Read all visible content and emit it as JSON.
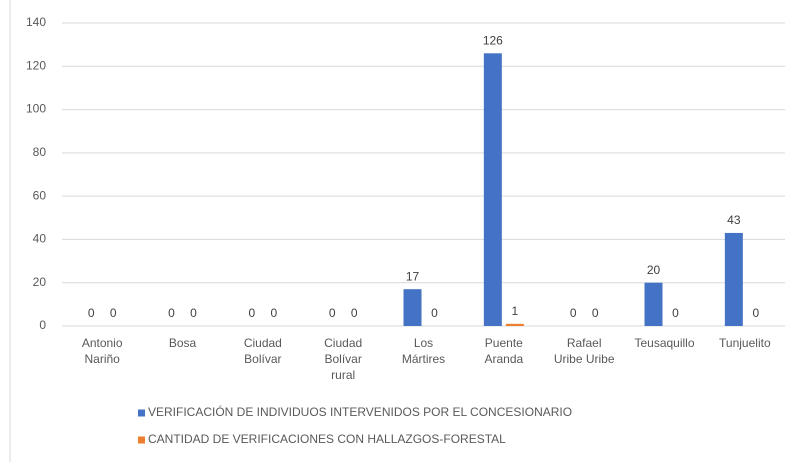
{
  "chart_data": {
    "type": "bar",
    "categories": [
      "Antonio Nariño",
      "Bosa",
      "Ciudad Bolívar",
      "Ciudad Bolívar rural",
      "Los Mártires",
      "Puente Aranda",
      "Rafael Uribe Uribe",
      "Teusaquillo",
      "Tunjuelito"
    ],
    "series": [
      {
        "name": "VERIFICACIÓN DE INDIVIDUOS INTERVENIDOS POR EL CONCESIONARIO",
        "color": "#4472c4",
        "values": [
          0,
          0,
          0,
          0,
          17,
          126,
          0,
          20,
          43
        ]
      },
      {
        "name": "CANTIDAD DE VERIFICACIONES CON HALLAZGOS-FORESTAL",
        "color": "#ed7d31",
        "values": [
          0,
          0,
          0,
          0,
          0,
          1,
          0,
          0,
          0
        ]
      }
    ],
    "ylim": [
      0,
      140
    ],
    "yticks": [
      0,
      20,
      40,
      60,
      80,
      100,
      120,
      140
    ],
    "grid": true,
    "legend": "bottom"
  }
}
